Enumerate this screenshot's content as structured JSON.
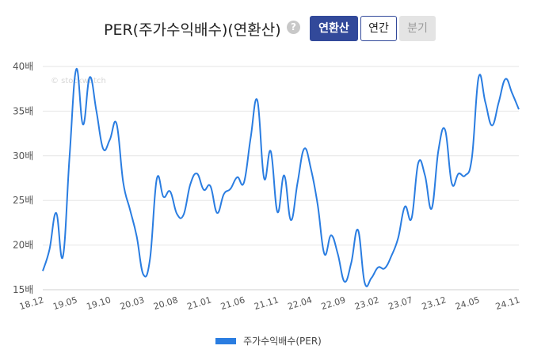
{
  "header": {
    "title": "PER(주가수익배수)(연환산)",
    "help_icon": "?",
    "tabs": [
      {
        "label": "연환산",
        "state": "active"
      },
      {
        "label": "연간",
        "state": "normal"
      },
      {
        "label": "분기",
        "state": "disabled"
      }
    ]
  },
  "watermark": "© stockwatch",
  "colors": {
    "line": "#2a7de1",
    "accent": "#32499a",
    "grid": "#e6e6e6"
  },
  "chart_data": {
    "type": "line",
    "x_unit": "yy.mm",
    "x_start": "18.12",
    "x_end": "24.11",
    "x_tick_labels": [
      "18.12",
      "19.05",
      "19.10",
      "20.03",
      "20.08",
      "21.01",
      "21.06",
      "21.11",
      "22.04",
      "22.09",
      "23.02",
      "23.07",
      "23.12",
      "24.05",
      "24.11"
    ],
    "y_tick_labels": [
      "15배",
      "20배",
      "25배",
      "30배",
      "35배",
      "40배"
    ],
    "y_ticks": [
      15,
      20,
      25,
      30,
      35,
      40
    ],
    "ylim": [
      15,
      40
    ],
    "grid": "horizontal",
    "legend_position": "bottom-center",
    "series": [
      {
        "name": "주가수익배수(PER)",
        "points": [
          [
            "18.12",
            17.1
          ],
          [
            "19.01",
            19.5
          ],
          [
            "19.02",
            23.6
          ],
          [
            "19.03",
            18.7
          ],
          [
            "19.04",
            30.0
          ],
          [
            "19.05",
            39.7
          ],
          [
            "19.06",
            33.5
          ],
          [
            "19.07",
            38.8
          ],
          [
            "19.08",
            35.0
          ],
          [
            "19.09",
            30.8
          ],
          [
            "19.10",
            31.8
          ],
          [
            "19.11",
            33.6
          ],
          [
            "19.12",
            27.0
          ],
          [
            "20.01",
            24.0
          ],
          [
            "20.02",
            21.0
          ],
          [
            "20.03",
            16.7
          ],
          [
            "20.04",
            18.5
          ],
          [
            "20.05",
            27.4
          ],
          [
            "20.06",
            25.4
          ],
          [
            "20.07",
            26.0
          ],
          [
            "20.08",
            23.5
          ],
          [
            "20.09",
            23.4
          ],
          [
            "20.10",
            26.8
          ],
          [
            "20.11",
            28.0
          ],
          [
            "20.12",
            26.2
          ],
          [
            "21.01",
            26.6
          ],
          [
            "21.02",
            23.6
          ],
          [
            "21.03",
            25.7
          ],
          [
            "21.04",
            26.3
          ],
          [
            "21.05",
            27.6
          ],
          [
            "21.06",
            27.0
          ],
          [
            "21.07",
            32.0
          ],
          [
            "21.08",
            36.2
          ],
          [
            "21.09",
            27.5
          ],
          [
            "21.10",
            30.5
          ],
          [
            "21.11",
            23.7
          ],
          [
            "21.12",
            27.8
          ],
          [
            "22.01",
            22.8
          ],
          [
            "22.02",
            27.0
          ],
          [
            "22.03",
            30.8
          ],
          [
            "22.04",
            28.5
          ],
          [
            "22.05",
            24.5
          ],
          [
            "22.06",
            19.0
          ],
          [
            "22.07",
            21.1
          ],
          [
            "22.08",
            19.0
          ],
          [
            "22.09",
            15.9
          ],
          [
            "22.10",
            18.0
          ],
          [
            "22.11",
            21.7
          ],
          [
            "22.12",
            15.8
          ],
          [
            "23.01",
            16.3
          ],
          [
            "23.02",
            17.5
          ],
          [
            "23.03",
            17.4
          ],
          [
            "23.04",
            18.8
          ],
          [
            "23.05",
            20.8
          ],
          [
            "23.06",
            24.3
          ],
          [
            "23.07",
            23.0
          ],
          [
            "23.08",
            29.2
          ],
          [
            "23.09",
            27.8
          ],
          [
            "23.10",
            24.1
          ],
          [
            "23.11",
            30.6
          ],
          [
            "23.12",
            32.9
          ],
          [
            "24.01",
            26.9
          ],
          [
            "24.02",
            28.0
          ],
          [
            "24.03",
            27.8
          ],
          [
            "24.04",
            29.8
          ],
          [
            "24.05",
            38.8
          ],
          [
            "24.06",
            36.0
          ],
          [
            "24.07",
            33.4
          ],
          [
            "24.08",
            36.0
          ],
          [
            "24.09",
            38.6
          ],
          [
            "24.10",
            37.0
          ],
          [
            "24.11",
            35.2
          ]
        ]
      }
    ]
  }
}
